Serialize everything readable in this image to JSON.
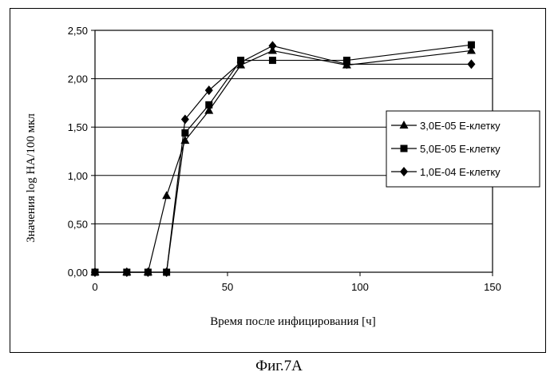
{
  "chart_data": {
    "type": "line",
    "xlabel": "Время после инфицирования [ч]",
    "ylabel": "Значения log HA/100 мкл",
    "xlim": [
      0,
      150
    ],
    "ylim": [
      0,
      2.5
    ],
    "x_ticks": [
      "0",
      "50",
      "100",
      "150"
    ],
    "y_ticks": [
      "0,00",
      "0,50",
      "1,00",
      "1,50",
      "2,00",
      "2,50"
    ],
    "grid": "horizontal",
    "legend_position": "right",
    "series": [
      {
        "name": "3,0E-05 Е-клетку",
        "marker": "triangle",
        "points": [
          [
            0,
            0
          ],
          [
            12,
            0
          ],
          [
            20,
            0
          ],
          [
            27,
            0.79
          ],
          [
            34,
            1.36
          ],
          [
            43,
            1.67
          ],
          [
            55,
            2.14
          ],
          [
            67,
            2.29
          ],
          [
            95,
            2.14
          ],
          [
            142,
            2.29
          ]
        ]
      },
      {
        "name": "5,0E-05 Е-клетку",
        "marker": "square",
        "points": [
          [
            0,
            0
          ],
          [
            12,
            0
          ],
          [
            20,
            0
          ],
          [
            27,
            0
          ],
          [
            34,
            1.44
          ],
          [
            43,
            1.73
          ],
          [
            55,
            2.19
          ],
          [
            67,
            2.19
          ],
          [
            95,
            2.19
          ],
          [
            142,
            2.35
          ]
        ]
      },
      {
        "name": "1,0E-04 Е-клетку",
        "marker": "diamond",
        "points": [
          [
            0,
            0
          ],
          [
            12,
            0
          ],
          [
            20,
            0
          ],
          [
            27,
            0
          ],
          [
            34,
            1.58
          ],
          [
            43,
            1.88
          ],
          [
            55,
            2.17
          ],
          [
            67,
            2.34
          ],
          [
            95,
            2.15
          ],
          [
            142,
            2.15
          ]
        ]
      }
    ]
  },
  "caption": "Фиг.7А"
}
